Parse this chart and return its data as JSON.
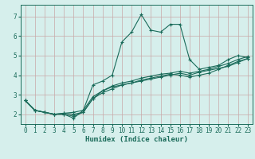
{
  "xlabel": "Humidex (Indice chaleur)",
  "ylabel": "",
  "background_color": "#d6efec",
  "grid_color": "#c8a8a8",
  "line_color": "#1a6b5a",
  "xlim": [
    -0.5,
    23.5
  ],
  "ylim": [
    1.5,
    7.6
  ],
  "yticks": [
    2,
    3,
    4,
    5,
    6,
    7
  ],
  "xticks": [
    0,
    1,
    2,
    3,
    4,
    5,
    6,
    7,
    8,
    9,
    10,
    11,
    12,
    13,
    14,
    15,
    16,
    17,
    18,
    19,
    20,
    21,
    22,
    23
  ],
  "series": [
    [
      0,
      2.7,
      1,
      2.2,
      2,
      2.1,
      3,
      2.0,
      4,
      2.0,
      5,
      1.8,
      6,
      2.2,
      7,
      3.5,
      8,
      3.7,
      9,
      4.0,
      10,
      5.7,
      11,
      6.2,
      12,
      7.1,
      13,
      6.3,
      14,
      6.2,
      15,
      6.6,
      16,
      6.6,
      17,
      4.8,
      18,
      4.3,
      19,
      4.4,
      20,
      4.5,
      21,
      4.8,
      22,
      5.0,
      23,
      4.9
    ],
    [
      0,
      2.7,
      1,
      2.2,
      2,
      2.1,
      3,
      2.0,
      4,
      2.0,
      5,
      1.9,
      6,
      2.1,
      7,
      2.8,
      8,
      3.2,
      9,
      3.4,
      10,
      3.5,
      11,
      3.6,
      12,
      3.7,
      13,
      3.8,
      14,
      3.9,
      15,
      4.0,
      16,
      4.1,
      17,
      4.0,
      18,
      4.15,
      19,
      4.25,
      20,
      4.35,
      21,
      4.45,
      22,
      4.65,
      23,
      4.85
    ],
    [
      0,
      2.7,
      1,
      2.2,
      2,
      2.1,
      3,
      2.0,
      4,
      2.05,
      5,
      2.0,
      6,
      2.1,
      7,
      2.8,
      8,
      3.1,
      9,
      3.3,
      10,
      3.5,
      11,
      3.6,
      12,
      3.75,
      13,
      3.85,
      14,
      3.95,
      15,
      4.05,
      16,
      4.0,
      17,
      3.9,
      18,
      4.0,
      19,
      4.1,
      20,
      4.3,
      21,
      4.5,
      22,
      4.7,
      23,
      4.85
    ],
    [
      0,
      2.7,
      1,
      2.2,
      2,
      2.1,
      3,
      2.0,
      4,
      2.05,
      5,
      2.1,
      6,
      2.2,
      7,
      2.9,
      8,
      3.2,
      9,
      3.45,
      10,
      3.6,
      11,
      3.7,
      12,
      3.85,
      13,
      3.95,
      14,
      4.05,
      15,
      4.1,
      16,
      4.2,
      17,
      4.1,
      18,
      4.2,
      19,
      4.3,
      20,
      4.45,
      21,
      4.6,
      22,
      4.8,
      23,
      4.95
    ]
  ],
  "tick_fontsize": 5.5,
  "xlabel_fontsize": 6.5,
  "line_width": 0.8,
  "marker_size": 3.0
}
